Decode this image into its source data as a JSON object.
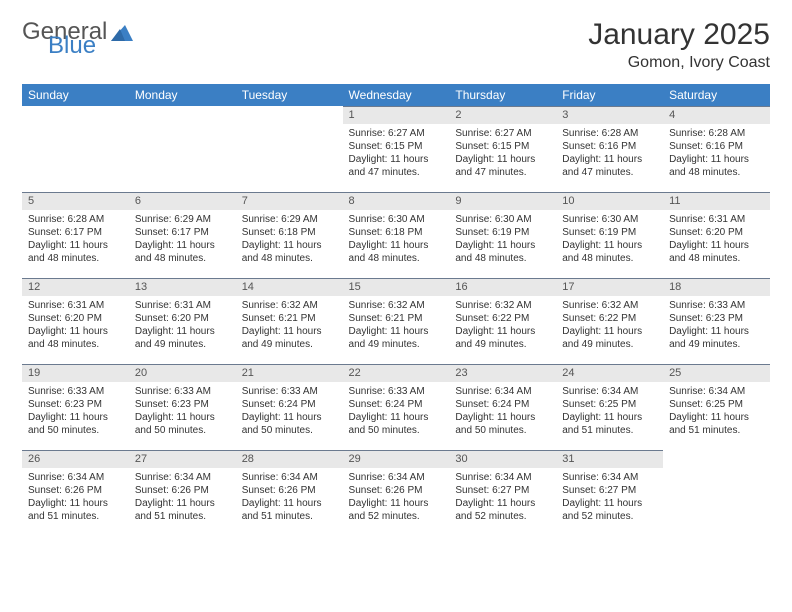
{
  "logo": {
    "text_general": "General",
    "text_blue": "Blue"
  },
  "header": {
    "month_title": "January 2025",
    "location": "Gomon, Ivory Coast"
  },
  "colors": {
    "header_bg": "#3b7fc4",
    "header_text": "#ffffff",
    "dayband_bg": "#e8e8e8",
    "dayband_border": "#6b7a8f",
    "body_text": "#333333",
    "logo_gray": "#555555",
    "logo_blue": "#3b7fc4",
    "page_bg": "#ffffff"
  },
  "typography": {
    "month_title_fontsize": 30,
    "location_fontsize": 16,
    "weekday_fontsize": 12,
    "daynum_fontsize": 11,
    "body_fontsize": 10
  },
  "weekdays": [
    "Sunday",
    "Monday",
    "Tuesday",
    "Wednesday",
    "Thursday",
    "Friday",
    "Saturday"
  ],
  "weeks": [
    [
      {
        "day": "",
        "sunrise": "",
        "sunset": "",
        "daylight": ""
      },
      {
        "day": "",
        "sunrise": "",
        "sunset": "",
        "daylight": ""
      },
      {
        "day": "",
        "sunrise": "",
        "sunset": "",
        "daylight": ""
      },
      {
        "day": "1",
        "sunrise": "Sunrise: 6:27 AM",
        "sunset": "Sunset: 6:15 PM",
        "daylight": "Daylight: 11 hours and 47 minutes."
      },
      {
        "day": "2",
        "sunrise": "Sunrise: 6:27 AM",
        "sunset": "Sunset: 6:15 PM",
        "daylight": "Daylight: 11 hours and 47 minutes."
      },
      {
        "day": "3",
        "sunrise": "Sunrise: 6:28 AM",
        "sunset": "Sunset: 6:16 PM",
        "daylight": "Daylight: 11 hours and 47 minutes."
      },
      {
        "day": "4",
        "sunrise": "Sunrise: 6:28 AM",
        "sunset": "Sunset: 6:16 PM",
        "daylight": "Daylight: 11 hours and 48 minutes."
      }
    ],
    [
      {
        "day": "5",
        "sunrise": "Sunrise: 6:28 AM",
        "sunset": "Sunset: 6:17 PM",
        "daylight": "Daylight: 11 hours and 48 minutes."
      },
      {
        "day": "6",
        "sunrise": "Sunrise: 6:29 AM",
        "sunset": "Sunset: 6:17 PM",
        "daylight": "Daylight: 11 hours and 48 minutes."
      },
      {
        "day": "7",
        "sunrise": "Sunrise: 6:29 AM",
        "sunset": "Sunset: 6:18 PM",
        "daylight": "Daylight: 11 hours and 48 minutes."
      },
      {
        "day": "8",
        "sunrise": "Sunrise: 6:30 AM",
        "sunset": "Sunset: 6:18 PM",
        "daylight": "Daylight: 11 hours and 48 minutes."
      },
      {
        "day": "9",
        "sunrise": "Sunrise: 6:30 AM",
        "sunset": "Sunset: 6:19 PM",
        "daylight": "Daylight: 11 hours and 48 minutes."
      },
      {
        "day": "10",
        "sunrise": "Sunrise: 6:30 AM",
        "sunset": "Sunset: 6:19 PM",
        "daylight": "Daylight: 11 hours and 48 minutes."
      },
      {
        "day": "11",
        "sunrise": "Sunrise: 6:31 AM",
        "sunset": "Sunset: 6:20 PM",
        "daylight": "Daylight: 11 hours and 48 minutes."
      }
    ],
    [
      {
        "day": "12",
        "sunrise": "Sunrise: 6:31 AM",
        "sunset": "Sunset: 6:20 PM",
        "daylight": "Daylight: 11 hours and 48 minutes."
      },
      {
        "day": "13",
        "sunrise": "Sunrise: 6:31 AM",
        "sunset": "Sunset: 6:20 PM",
        "daylight": "Daylight: 11 hours and 49 minutes."
      },
      {
        "day": "14",
        "sunrise": "Sunrise: 6:32 AM",
        "sunset": "Sunset: 6:21 PM",
        "daylight": "Daylight: 11 hours and 49 minutes."
      },
      {
        "day": "15",
        "sunrise": "Sunrise: 6:32 AM",
        "sunset": "Sunset: 6:21 PM",
        "daylight": "Daylight: 11 hours and 49 minutes."
      },
      {
        "day": "16",
        "sunrise": "Sunrise: 6:32 AM",
        "sunset": "Sunset: 6:22 PM",
        "daylight": "Daylight: 11 hours and 49 minutes."
      },
      {
        "day": "17",
        "sunrise": "Sunrise: 6:32 AM",
        "sunset": "Sunset: 6:22 PM",
        "daylight": "Daylight: 11 hours and 49 minutes."
      },
      {
        "day": "18",
        "sunrise": "Sunrise: 6:33 AM",
        "sunset": "Sunset: 6:23 PM",
        "daylight": "Daylight: 11 hours and 49 minutes."
      }
    ],
    [
      {
        "day": "19",
        "sunrise": "Sunrise: 6:33 AM",
        "sunset": "Sunset: 6:23 PM",
        "daylight": "Daylight: 11 hours and 50 minutes."
      },
      {
        "day": "20",
        "sunrise": "Sunrise: 6:33 AM",
        "sunset": "Sunset: 6:23 PM",
        "daylight": "Daylight: 11 hours and 50 minutes."
      },
      {
        "day": "21",
        "sunrise": "Sunrise: 6:33 AM",
        "sunset": "Sunset: 6:24 PM",
        "daylight": "Daylight: 11 hours and 50 minutes."
      },
      {
        "day": "22",
        "sunrise": "Sunrise: 6:33 AM",
        "sunset": "Sunset: 6:24 PM",
        "daylight": "Daylight: 11 hours and 50 minutes."
      },
      {
        "day": "23",
        "sunrise": "Sunrise: 6:34 AM",
        "sunset": "Sunset: 6:24 PM",
        "daylight": "Daylight: 11 hours and 50 minutes."
      },
      {
        "day": "24",
        "sunrise": "Sunrise: 6:34 AM",
        "sunset": "Sunset: 6:25 PM",
        "daylight": "Daylight: 11 hours and 51 minutes."
      },
      {
        "day": "25",
        "sunrise": "Sunrise: 6:34 AM",
        "sunset": "Sunset: 6:25 PM",
        "daylight": "Daylight: 11 hours and 51 minutes."
      }
    ],
    [
      {
        "day": "26",
        "sunrise": "Sunrise: 6:34 AM",
        "sunset": "Sunset: 6:26 PM",
        "daylight": "Daylight: 11 hours and 51 minutes."
      },
      {
        "day": "27",
        "sunrise": "Sunrise: 6:34 AM",
        "sunset": "Sunset: 6:26 PM",
        "daylight": "Daylight: 11 hours and 51 minutes."
      },
      {
        "day": "28",
        "sunrise": "Sunrise: 6:34 AM",
        "sunset": "Sunset: 6:26 PM",
        "daylight": "Daylight: 11 hours and 51 minutes."
      },
      {
        "day": "29",
        "sunrise": "Sunrise: 6:34 AM",
        "sunset": "Sunset: 6:26 PM",
        "daylight": "Daylight: 11 hours and 52 minutes."
      },
      {
        "day": "30",
        "sunrise": "Sunrise: 6:34 AM",
        "sunset": "Sunset: 6:27 PM",
        "daylight": "Daylight: 11 hours and 52 minutes."
      },
      {
        "day": "31",
        "sunrise": "Sunrise: 6:34 AM",
        "sunset": "Sunset: 6:27 PM",
        "daylight": "Daylight: 11 hours and 52 minutes."
      },
      {
        "day": "",
        "sunrise": "",
        "sunset": "",
        "daylight": ""
      }
    ]
  ]
}
